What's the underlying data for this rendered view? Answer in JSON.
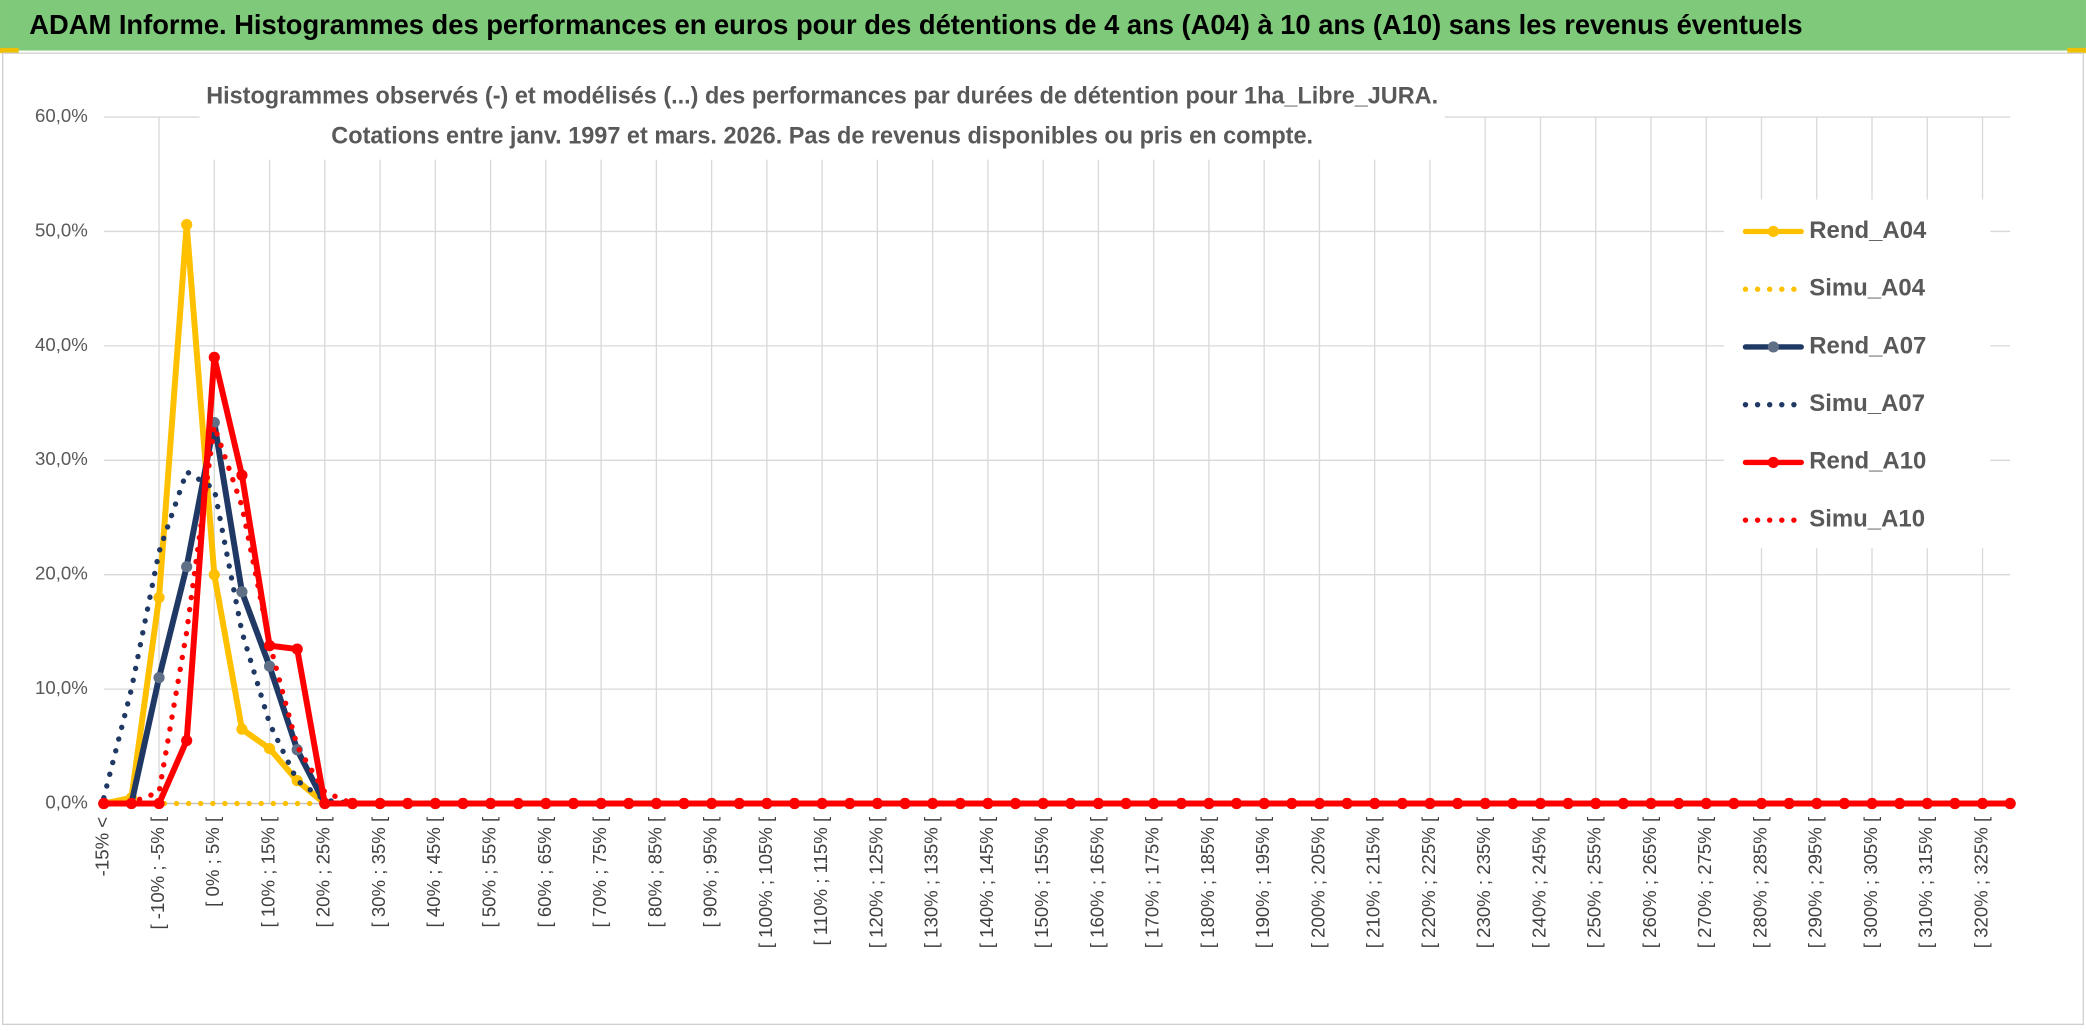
{
  "chart_data": {
    "type": "line",
    "header": "ADAM Informe. Histogrammes des performances en euros pour des détentions de 4 ans (A04) à 10 ans (A10) sans les revenus éventuels",
    "title": "Histogrammes observés (-) et modélisés (...) des performances par durées de détention pour 1ha_Libre_JURA.",
    "subtitle": "Cotations entre janv. 1997 et mars. 2026. Pas de revenus disponibles ou pris en compte.",
    "categories": [
      "-15% <",
      null,
      "[ -10% ; -5% [",
      null,
      "[ 0% ; 5% [",
      null,
      "[ 10% ; 15% [",
      null,
      "[ 20% ; 25% [",
      null,
      "[ 30% ; 35% [",
      null,
      "[ 40% ; 45% [",
      null,
      "[ 50% ; 55% [",
      null,
      "[ 60% ; 65% [",
      null,
      "[ 70% ; 75% [",
      null,
      "[ 80% ; 85% [",
      null,
      "[ 90% ; 95% [",
      null,
      "[ 100% ; 105% [",
      null,
      "[ 110% ; 115% [",
      null,
      "[ 120% ; 125% [",
      null,
      "[ 130% ; 135% [",
      null,
      "[ 140% ; 145% [",
      null,
      "[ 150% ; 155% [",
      null,
      "[ 160% ; 165% [",
      null,
      "[ 170% ; 175% [",
      null,
      "[ 180% ; 185% [",
      null,
      "[ 190% ; 195% [",
      null,
      "[ 200% ; 205% [",
      null,
      "[ 210% ; 215% [",
      null,
      "[ 220% ; 225% [",
      null,
      "[ 230% ; 235% [",
      null,
      "[ 240% ; 245% [",
      null,
      "[ 250% ; 255% [",
      null,
      "[ 260% ; 265% [",
      null,
      "[ 270% ; 275% [",
      null,
      "[ 280% ; 285% [",
      null,
      "[ 290% ; 295% [",
      null,
      "[ 300% ; 305% [",
      null,
      "[ 310% ; 315% [",
      null,
      "[ 320% ; 325% [",
      null
    ],
    "ylim": [
      0,
      60
    ],
    "yticks": [
      {
        "value": 0,
        "label": "0,0%"
      },
      {
        "value": 10,
        "label": "10,0%"
      },
      {
        "value": 20,
        "label": "20,0%"
      },
      {
        "value": 30,
        "label": "30,0%"
      },
      {
        "value": 40,
        "label": "40,0%"
      },
      {
        "value": 50,
        "label": "50,0%"
      },
      {
        "value": 60,
        "label": "60,0%"
      }
    ],
    "grid": true,
    "legend": "right",
    "series": [
      {
        "name": "Rend_A04",
        "color": "#ffc000",
        "style": "solid",
        "marker_color": "#ffc000",
        "values": [
          0,
          0.5,
          18,
          50.6,
          20,
          6.5,
          4.8,
          2,
          0,
          0,
          0,
          0,
          0,
          0,
          0,
          0,
          0,
          0,
          0,
          0,
          0,
          0,
          0,
          0,
          0,
          0,
          0,
          0,
          0,
          0,
          0,
          0,
          0,
          0,
          0,
          0,
          0,
          0,
          0,
          0,
          0,
          0,
          0,
          0,
          0,
          0,
          0,
          0,
          0,
          0,
          0,
          0,
          0,
          0,
          0,
          0,
          0,
          0,
          0,
          0,
          0,
          0,
          0,
          0,
          0,
          0,
          0,
          0,
          0,
          0
        ]
      },
      {
        "name": "Simu_A04",
        "color": "#ffc000",
        "style": "dotted",
        "values": [
          0,
          0,
          0,
          0,
          0,
          0,
          0,
          0,
          0,
          0,
          0,
          0,
          0,
          0,
          0,
          0,
          0,
          0,
          0,
          0,
          0,
          0,
          0,
          0,
          0,
          0,
          0,
          0,
          0,
          0,
          0,
          0,
          0,
          0,
          0,
          0,
          0,
          0,
          0,
          0,
          0,
          0,
          0,
          0,
          0,
          0,
          0,
          0,
          0,
          0,
          0,
          0,
          0,
          0,
          0,
          0,
          0,
          0,
          0,
          0,
          0,
          0,
          0,
          0,
          0,
          0,
          0,
          0,
          0,
          0
        ]
      },
      {
        "name": "Rend_A07",
        "color": "#1f3864",
        "style": "solid",
        "marker_color": "#5f6f85",
        "values": [
          0,
          0,
          11,
          20.7,
          33.3,
          18.5,
          12,
          4.7,
          0,
          0,
          0,
          0,
          0,
          0,
          0,
          0,
          0,
          0,
          0,
          0,
          0,
          0,
          0,
          0,
          0,
          0,
          0,
          0,
          0,
          0,
          0,
          0,
          0,
          0,
          0,
          0,
          0,
          0,
          0,
          0,
          0,
          0,
          0,
          0,
          0,
          0,
          0,
          0,
          0,
          0,
          0,
          0,
          0,
          0,
          0,
          0,
          0,
          0,
          0,
          0,
          0,
          0,
          0,
          0,
          0,
          0,
          0,
          0,
          0,
          0
        ]
      },
      {
        "name": "Simu_A07",
        "color": "#1f3864",
        "style": "dotted",
        "values": [
          0.5,
          10,
          22,
          29,
          27.5,
          15,
          7,
          2,
          0.3,
          0,
          0,
          0,
          0,
          0,
          0,
          0,
          0,
          0,
          0,
          0,
          0,
          0,
          0,
          0,
          0,
          0,
          0,
          0,
          0,
          0,
          0,
          0,
          0,
          0,
          0,
          0,
          0,
          0,
          0,
          0,
          0,
          0,
          0,
          0,
          0,
          0,
          0,
          0,
          0,
          0,
          0,
          0,
          0,
          0,
          0,
          0,
          0,
          0,
          0,
          0,
          0,
          0,
          0,
          0,
          0,
          0,
          0,
          0,
          0,
          0
        ]
      },
      {
        "name": "Rend_A10",
        "color": "#ff0000",
        "style": "solid",
        "marker_color": "#ff0000",
        "values": [
          0,
          0,
          0,
          5.5,
          39,
          28.7,
          13.8,
          13.5,
          0,
          0,
          0,
          0,
          0,
          0,
          0,
          0,
          0,
          0,
          0,
          0,
          0,
          0,
          0,
          0,
          0,
          0,
          0,
          0,
          0,
          0,
          0,
          0,
          0,
          0,
          0,
          0,
          0,
          0,
          0,
          0,
          0,
          0,
          0,
          0,
          0,
          0,
          0,
          0,
          0,
          0,
          0,
          0,
          0,
          0,
          0,
          0,
          0,
          0,
          0,
          0,
          0,
          0,
          0,
          0,
          0,
          0,
          0,
          0,
          0,
          0
        ]
      },
      {
        "name": "Simu_A10",
        "color": "#ff0000",
        "style": "dotted",
        "values": [
          0,
          0.1,
          1,
          15,
          33,
          26,
          14,
          5,
          1,
          0,
          0,
          0,
          0,
          0,
          0,
          0,
          0,
          0,
          0,
          0,
          0,
          0,
          0,
          0,
          0,
          0,
          0,
          0,
          0,
          0,
          0,
          0,
          0,
          0,
          0,
          0,
          0,
          0,
          0,
          0,
          0,
          0,
          0,
          0,
          0,
          0,
          0,
          0,
          0,
          0,
          0,
          0,
          0,
          0,
          0,
          0,
          0,
          0,
          0,
          0,
          0,
          0,
          0,
          0,
          0,
          0,
          0,
          0,
          0,
          0
        ]
      }
    ]
  }
}
